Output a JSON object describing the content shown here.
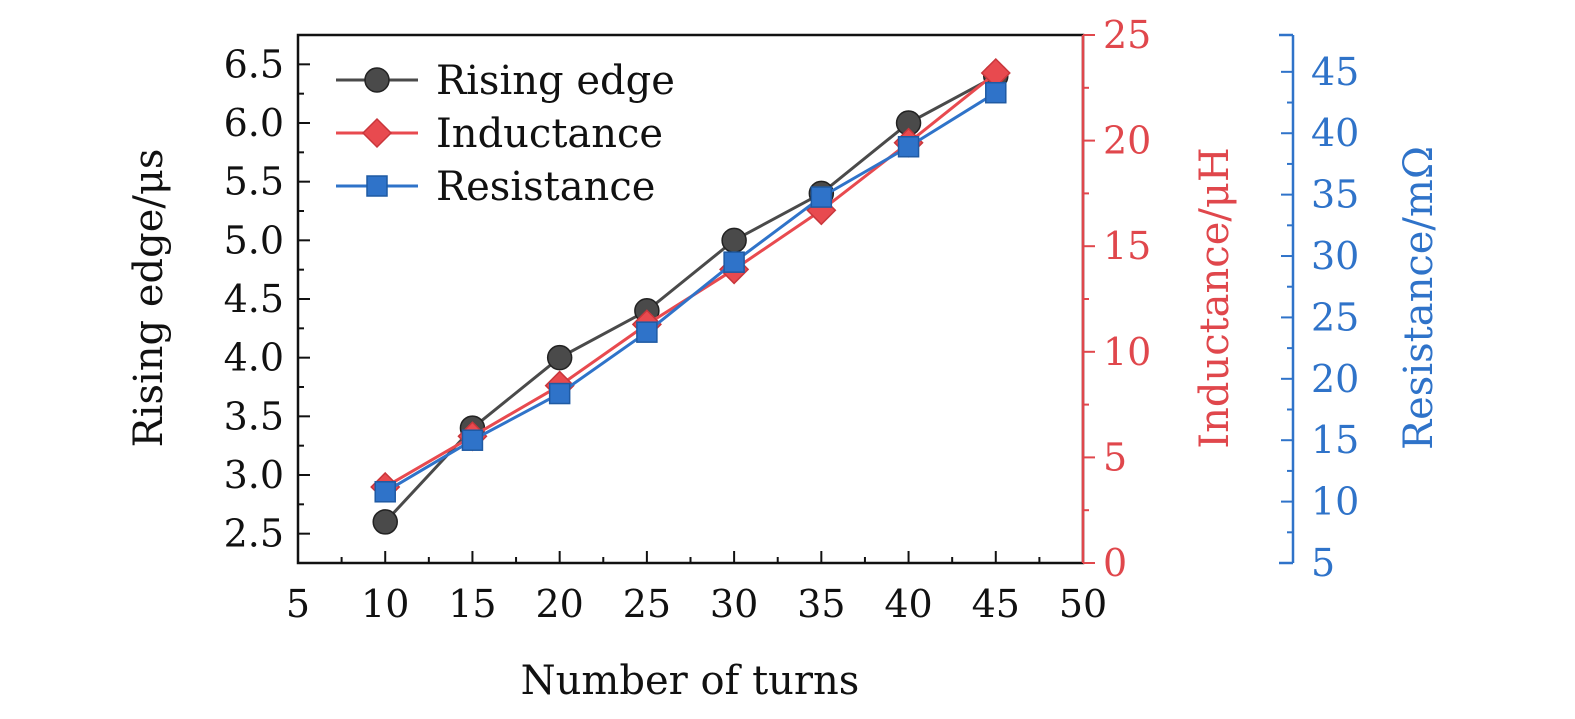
{
  "chart_data": {
    "type": "line",
    "xlabel": "Number of turns",
    "x_ticks": [
      "5",
      "10",
      "15",
      "20",
      "25",
      "30",
      "35",
      "40",
      "45",
      "50"
    ],
    "xlim": [
      5,
      50
    ],
    "axes": {
      "left": {
        "label": "Rising edge/μs",
        "ylim": [
          2.25,
          6.75
        ],
        "ticks": [
          "2.5",
          "3.0",
          "3.5",
          "4.0",
          "4.5",
          "5.0",
          "5.5",
          "6.0",
          "6.5"
        ],
        "color": "#111111"
      },
      "right1": {
        "label": "Inductance/μH",
        "ylim": [
          0,
          25
        ],
        "ticks": [
          "0",
          "5",
          "10",
          "15",
          "20",
          "25"
        ],
        "color": "#e0474c"
      },
      "right2": {
        "label": "Resistance/mΩ",
        "ylim": [
          5,
          48
        ],
        "ticks": [
          "5",
          "10",
          "15",
          "20",
          "25",
          "30",
          "35",
          "40",
          "45"
        ],
        "color": "#2f73c9"
      }
    },
    "series": [
      {
        "name": "Rising edge",
        "axis": "left",
        "color": "#4a4a4a",
        "marker": "circle",
        "x": [
          10,
          15,
          20,
          25,
          30,
          35,
          40,
          45
        ],
        "values": [
          2.6,
          3.4,
          4.0,
          4.4,
          5.0,
          5.4,
          6.0,
          6.4
        ]
      },
      {
        "name": "Inductance",
        "axis": "right1",
        "color": "#e84a4f",
        "marker": "diamond",
        "x": [
          10,
          15,
          20,
          25,
          30,
          35,
          40,
          45
        ],
        "values": [
          3.6,
          6.0,
          8.4,
          11.3,
          13.9,
          16.7,
          19.9,
          23.2
        ]
      },
      {
        "name": "Resistance",
        "axis": "right2",
        "color": "#2f73c9",
        "marker": "square",
        "x": [
          10,
          15,
          20,
          25,
          30,
          35,
          40,
          45
        ],
        "values": [
          10.8,
          15.0,
          18.8,
          23.8,
          29.5,
          34.8,
          38.9,
          43.3
        ]
      }
    ],
    "legend": "top-left",
    "grid": false
  }
}
